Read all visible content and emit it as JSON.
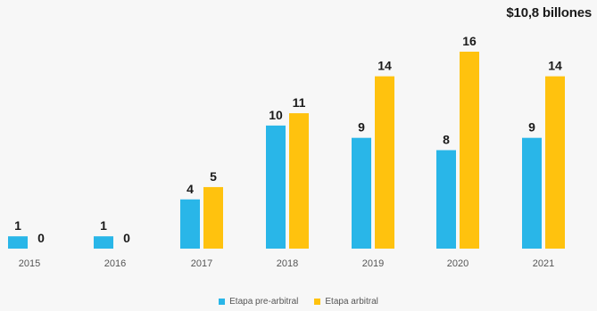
{
  "chart_data": {
    "type": "bar",
    "categories": [
      "2015",
      "2016",
      "2017",
      "2018",
      "2019",
      "2020",
      "2021"
    ],
    "series": [
      {
        "name": "Etapa pre-arbitral",
        "values": [
          1,
          1,
          4,
          10,
          9,
          8,
          9
        ],
        "color": "#29b6e8"
      },
      {
        "name": "Etapa arbitral",
        "values": [
          0,
          0,
          5,
          11,
          14,
          16,
          14
        ],
        "color": "#ffc20e"
      }
    ],
    "ylim": [
      0,
      16
    ],
    "annotation": "$10,8 billones",
    "legend_position": "bottom",
    "grid": false
  }
}
